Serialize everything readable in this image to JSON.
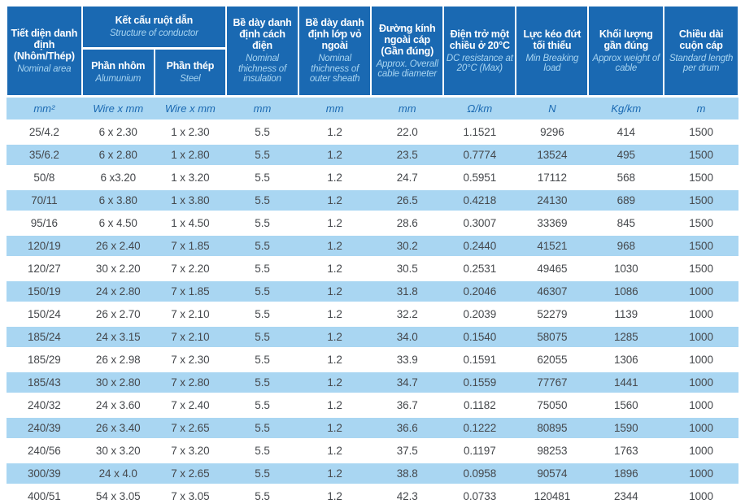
{
  "colors": {
    "header_blue": "#1a69b2",
    "stripe_blue": "#a9d6f2",
    "header_subtitle_blue": "#a7d4f1",
    "unit_text_blue": "#1a69b2",
    "data_text": "#45484c",
    "background": "#ffffff"
  },
  "table": {
    "header": {
      "area": {
        "title": "Tiết diện danh định (Nhôm/Thép)",
        "subtitle": "Nominal area"
      },
      "conductor_group": {
        "title": "Kết cấu ruột dẫn",
        "subtitle": "Structure of conductor"
      },
      "aluminium": {
        "title": "Phần nhôm",
        "subtitle": "Alumunium"
      },
      "steel": {
        "title": "Phần thép",
        "subtitle": "Steel"
      },
      "insulation": {
        "title": "Bề dày danh định cách điện",
        "subtitle": "Nominal thichness of insulation"
      },
      "outer_sheath": {
        "title": "Bề dày danh định lớp vỏ ngoài",
        "subtitle": "Nominal thichness of outer sheath"
      },
      "diameter": {
        "title": "Đường kính ngoài cáp (Gần đúng)",
        "subtitle": "Approx. Overall cable diameter"
      },
      "resistance": {
        "title": "Điện trở một chiều ở 20°C",
        "subtitle": "DC resistance at 20°C (Max)"
      },
      "breaking_load": {
        "title": "Lực kéo đứt tối thiểu",
        "subtitle": "Min Breaking load"
      },
      "weight": {
        "title": "Khối lượng gần đúng",
        "subtitle": "Approx weight of cable"
      },
      "drum_length": {
        "title": "Chiều dài cuộn cáp",
        "subtitle": "Standard length per drum"
      }
    },
    "units": [
      "mm²",
      "Wire x mm",
      "Wire x mm",
      "mm",
      "mm",
      "mm",
      "Ω/km",
      "N",
      "Kg/km",
      "m"
    ],
    "rows": [
      [
        "25/4.2",
        "6 x 2.30",
        "1 x 2.30",
        "5.5",
        "1.2",
        "22.0",
        "1.1521",
        "9296",
        "414",
        "1500"
      ],
      [
        "35/6.2",
        "6 x 2.80",
        "1 x 2.80",
        "5.5",
        "1.2",
        "23.5",
        "0.7774",
        "13524",
        "495",
        "1500"
      ],
      [
        "50/8",
        "6 x3.20",
        "1 x 3.20",
        "5.5",
        "1.2",
        "24.7",
        "0.5951",
        "17112",
        "568",
        "1500"
      ],
      [
        "70/11",
        "6 x 3.80",
        "1 x 3.80",
        "5.5",
        "1.2",
        "26.5",
        "0.4218",
        "24130",
        "689",
        "1500"
      ],
      [
        "95/16",
        "6 x 4.50",
        "1 x 4.50",
        "5.5",
        "1.2",
        "28.6",
        "0.3007",
        "33369",
        "845",
        "1500"
      ],
      [
        "120/19",
        "26 x 2.40",
        "7 x 1.85",
        "5.5",
        "1.2",
        "30.2",
        "0.2440",
        "41521",
        "968",
        "1500"
      ],
      [
        "120/27",
        "30 x 2.20",
        "7 x 2.20",
        "5.5",
        "1.2",
        "30.5",
        "0.2531",
        "49465",
        "1030",
        "1500"
      ],
      [
        "150/19",
        "24 x 2.80",
        "7 x 1.85",
        "5.5",
        "1.2",
        "31.8",
        "0.2046",
        "46307",
        "1086",
        "1000"
      ],
      [
        "150/24",
        "26 x 2.70",
        "7 x 2.10",
        "5.5",
        "1.2",
        "32.2",
        "0.2039",
        "52279",
        "1139",
        "1000"
      ],
      [
        "185/24",
        "24 x 3.15",
        "7 x 2.10",
        "5.5",
        "1.2",
        "34.0",
        "0.1540",
        "58075",
        "1285",
        "1000"
      ],
      [
        "185/29",
        "26 x 2.98",
        "7 x 2.30",
        "5.5",
        "1.2",
        "33.9",
        "0.1591",
        "62055",
        "1306",
        "1000"
      ],
      [
        "185/43",
        "30 x 2.80",
        "7 x 2.80",
        "5.5",
        "1.2",
        "34.7",
        "0.1559",
        "77767",
        "1441",
        "1000"
      ],
      [
        "240/32",
        "24 x 3.60",
        "7 x 2.40",
        "5.5",
        "1.2",
        "36.7",
        "0.1182",
        "75050",
        "1560",
        "1000"
      ],
      [
        "240/39",
        "26 x 3.40",
        "7 x 2.65",
        "5.5",
        "1.2",
        "36.6",
        "0.1222",
        "80895",
        "1590",
        "1000"
      ],
      [
        "240/56",
        "30 x 3.20",
        "7 x 3.20",
        "5.5",
        "1.2",
        "37.5",
        "0.1197",
        "98253",
        "1763",
        "1000"
      ],
      [
        "300/39",
        "24 x 4.0",
        "7 x 2.65",
        "5.5",
        "1.2",
        "38.8",
        "0.0958",
        "90574",
        "1896",
        "1000"
      ],
      [
        "400/51",
        "54 x 3.05",
        "7 x 3.05",
        "5.5",
        "1.2",
        "42.3",
        "0.0733",
        "120481",
        "2344",
        "1000"
      ]
    ]
  }
}
